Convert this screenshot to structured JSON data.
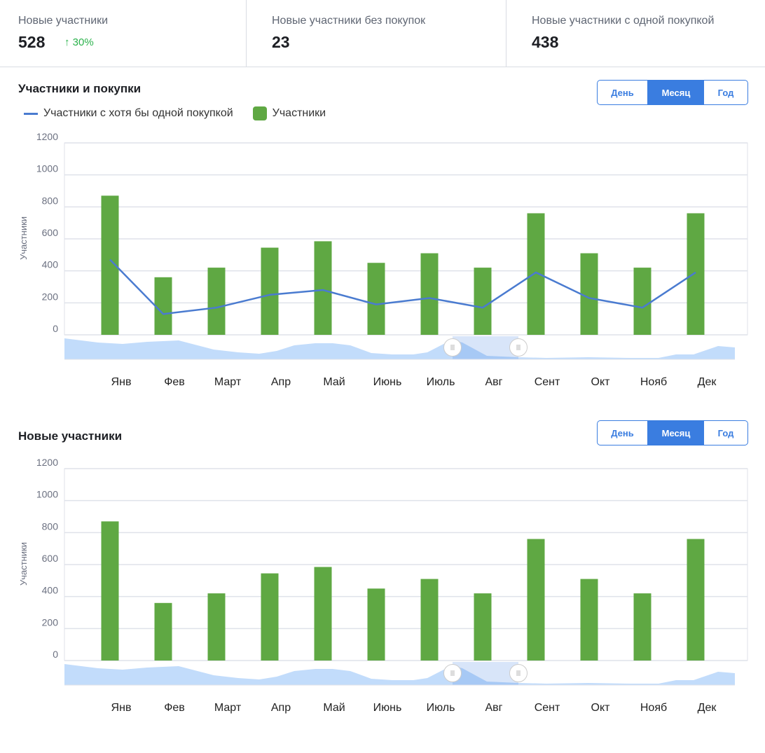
{
  "stats": [
    {
      "label": "Новые участники",
      "value": "528",
      "change": "↑ 30%"
    },
    {
      "label": "Новые участники без покупок",
      "value": "23"
    },
    {
      "label": "Новые участники с одной покупкой",
      "value": "438"
    }
  ],
  "period_buttons": {
    "day": "День",
    "month": "Месяц",
    "year": "Год",
    "selected": "Месяц"
  },
  "colors": {
    "bar": "#5fa843",
    "line": "#4a7bd0",
    "accent": "#3a7de0",
    "navigator": "#c2dcfb"
  },
  "chart_data": [
    {
      "type": "bar",
      "title": "Участники и покупки",
      "ylabel": "Участники",
      "ylim": [
        0,
        1200
      ],
      "yticks": [
        "0",
        "200",
        "400",
        "600",
        "800",
        "1000",
        "1200"
      ],
      "categories": [
        "Янв",
        "Фев",
        "Март",
        "Апр",
        "Май",
        "Июнь",
        "Июль",
        "Авг",
        "Сент",
        "Окт",
        "Нояб",
        "Дек"
      ],
      "series": [
        {
          "name": "Участники",
          "type": "bar",
          "values": [
            870,
            360,
            420,
            545,
            585,
            450,
            510,
            420,
            760,
            510,
            420,
            760
          ]
        },
        {
          "name": "Участники с хотя бы одной покупкой",
          "type": "line",
          "values": [
            470,
            130,
            170,
            250,
            280,
            190,
            230,
            170,
            390,
            230,
            170,
            390
          ]
        }
      ],
      "legend": [
        "Участники с хотя бы одной покупкой",
        "Участники"
      ]
    },
    {
      "type": "bar",
      "title": "Новые участники",
      "ylabel": "Участники",
      "ylim": [
        0,
        1200
      ],
      "yticks": [
        "0",
        "200",
        "400",
        "600",
        "800",
        "1000",
        "1200"
      ],
      "categories": [
        "Янв",
        "Фев",
        "Март",
        "Апр",
        "Май",
        "Июнь",
        "Июль",
        "Авг",
        "Сент",
        "Окт",
        "Нояб",
        "Дек"
      ],
      "series": [
        {
          "name": "Участники",
          "type": "bar",
          "values": [
            870,
            360,
            420,
            545,
            585,
            450,
            510,
            420,
            760,
            510,
            420,
            760
          ]
        }
      ]
    }
  ]
}
